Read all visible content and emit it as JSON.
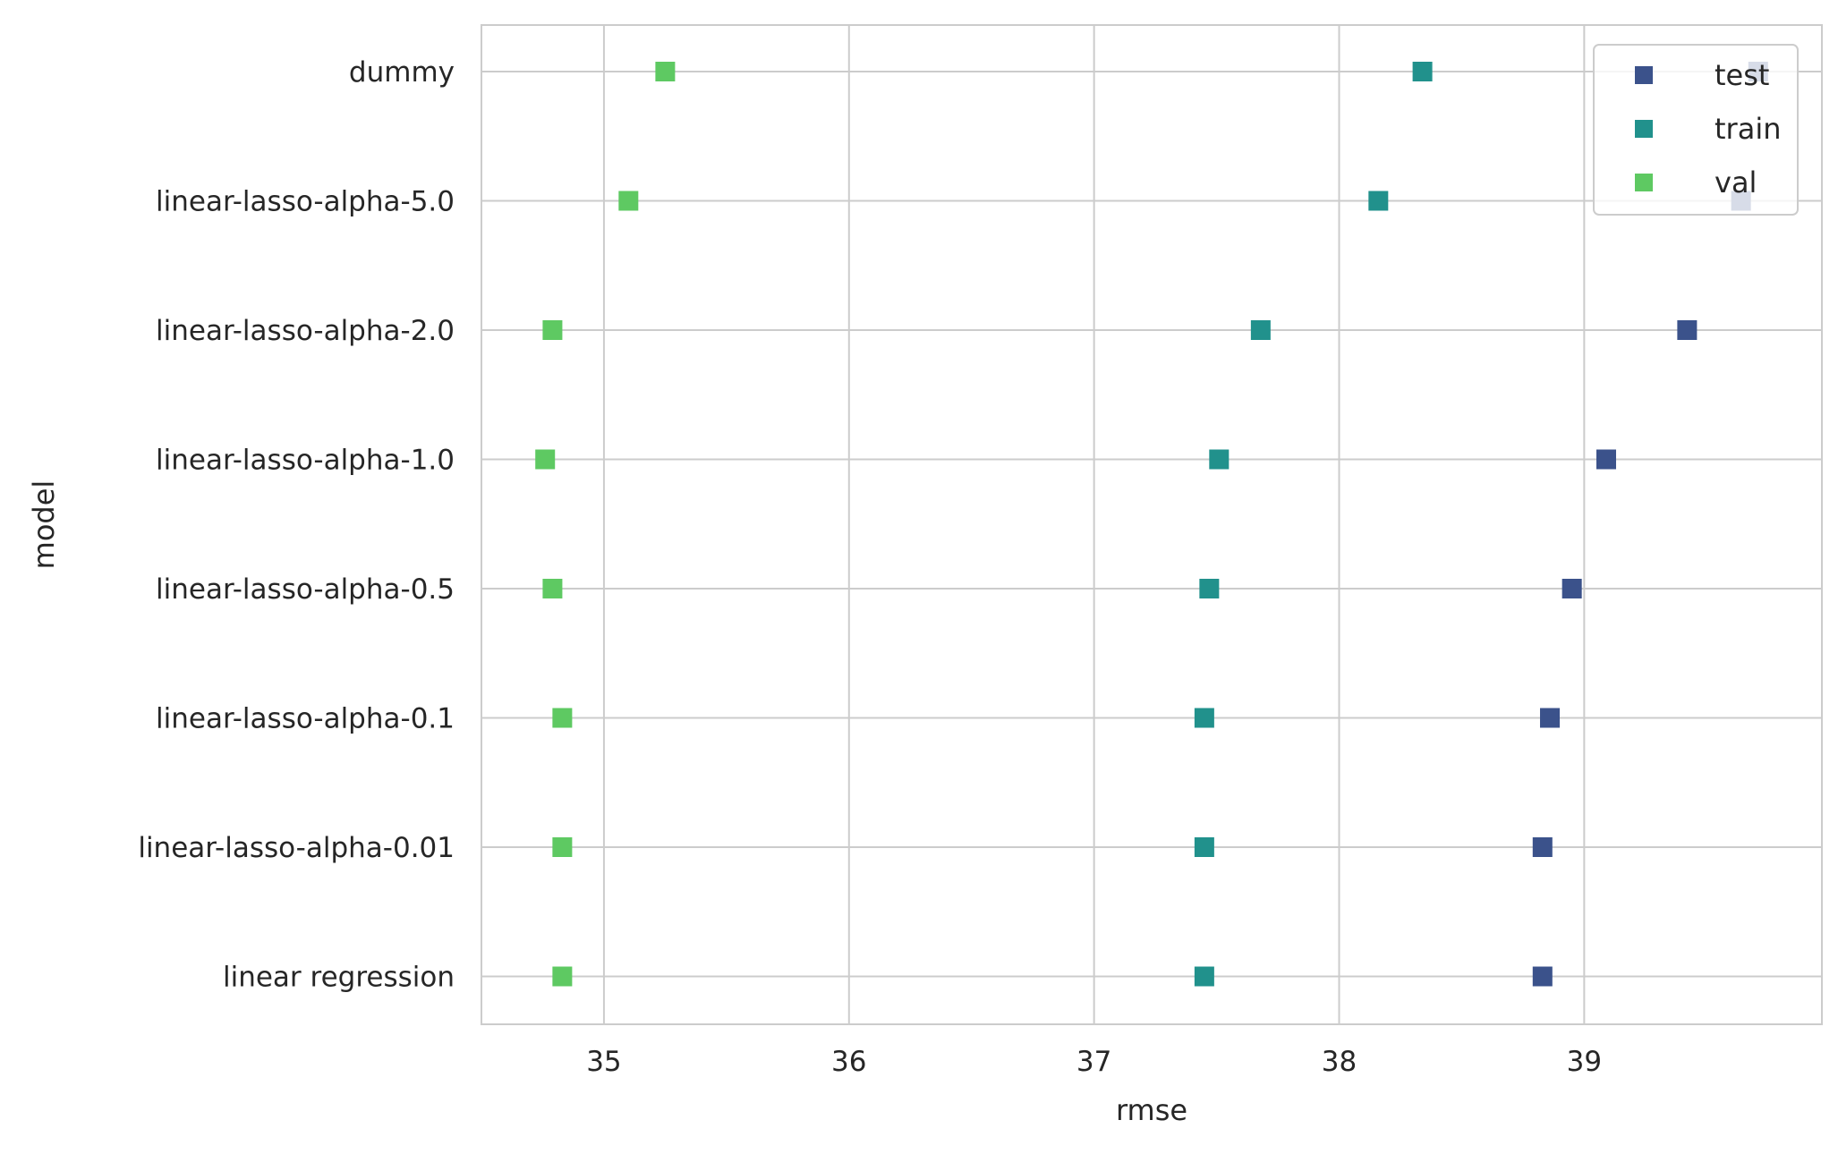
{
  "chart_data": {
    "type": "scatter",
    "marker": "square",
    "orientation": "horizontal",
    "xlabel": "rmse",
    "ylabel": "model",
    "xlim": [
      34.5,
      39.97
    ],
    "xticks": [
      35,
      36,
      37,
      38,
      39
    ],
    "grid": true,
    "legend_position": "top-right",
    "categories": [
      "dummy",
      "linear-lasso-alpha-5.0",
      "linear-lasso-alpha-2.0",
      "linear-lasso-alpha-1.0",
      "linear-lasso-alpha-0.5",
      "linear-lasso-alpha-0.1",
      "linear-lasso-alpha-0.01",
      "linear regression"
    ],
    "series": [
      {
        "name": "test",
        "color": "#3b528b",
        "values": [
          39.71,
          39.64,
          39.42,
          39.09,
          38.95,
          38.86,
          38.83,
          38.83
        ]
      },
      {
        "name": "train",
        "color": "#21918c",
        "values": [
          38.34,
          38.16,
          37.68,
          37.51,
          37.47,
          37.45,
          37.45,
          37.45
        ]
      },
      {
        "name": "val",
        "color": "#5ec962",
        "values": [
          35.25,
          35.1,
          34.79,
          34.76,
          34.79,
          34.83,
          34.83,
          34.83
        ]
      }
    ]
  }
}
